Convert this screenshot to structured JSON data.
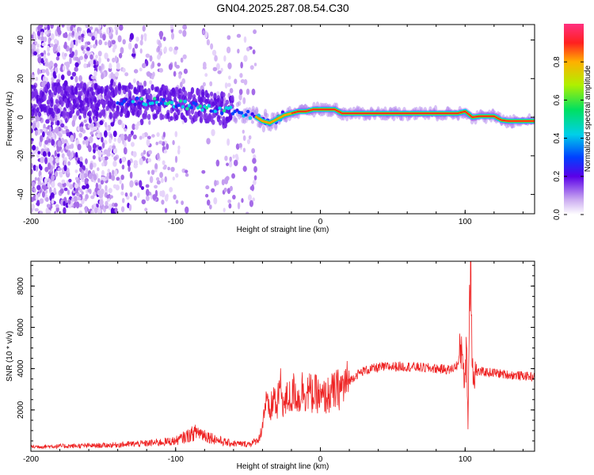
{
  "title": "GN04.2025.287.08.54.C30",
  "chart_data": [
    {
      "type": "heatmap",
      "name": "spectrogram",
      "xlabel": "Height of straight line (km)",
      "ylabel": "Frequency (Hz)",
      "xlim": [
        -200,
        148
      ],
      "ylim": [
        -50,
        48
      ],
      "xticks": [
        "-200",
        "-100",
        "0",
        "100"
      ],
      "yticks": [
        "40",
        "20",
        "0",
        "-20",
        "-40"
      ],
      "colorbar": {
        "label": "Normalized spectral amplitude",
        "range": [
          0,
          1
        ],
        "ticks": [
          "0.0",
          "0.2",
          "0.4",
          "0.6",
          "0.8"
        ]
      },
      "ridge": {
        "x": [
          -200,
          -180,
          -160,
          -140,
          -120,
          -100,
          -90,
          -80,
          -70,
          -60,
          -50,
          -45,
          -40,
          -35,
          -30,
          -25,
          -20,
          -15,
          -10,
          -5,
          0,
          5,
          10,
          15,
          20,
          40,
          60,
          80,
          95,
          100,
          105,
          110,
          120,
          125,
          130,
          140,
          148
        ],
        "frequency_hz": [
          9,
          9,
          9,
          8.5,
          8,
          7,
          6,
          5,
          4,
          3,
          1.5,
          0.5,
          -2,
          -3,
          -1,
          1,
          2,
          3,
          3,
          4,
          4,
          4,
          4,
          2,
          2,
          2,
          2,
          2,
          2,
          3,
          0,
          0.5,
          0.5,
          -1.5,
          -2,
          -2,
          -2
        ]
      }
    },
    {
      "type": "line",
      "name": "snr",
      "xlabel": "Height of straight line (km)",
      "ylabel": "SNR (10 * v/v)",
      "xlim": [
        -200,
        148
      ],
      "ylim": [
        0,
        9200
      ],
      "xticks": [
        "-200",
        "-100",
        "0",
        "100"
      ],
      "yticks": [
        "2000",
        "4000",
        "6000",
        "8000"
      ],
      "color": "#ee2222",
      "envelope": {
        "x": [
          -200,
          -150,
          -120,
          -100,
          -95,
          -90,
          -85,
          -80,
          -75,
          -70,
          -65,
          -60,
          -55,
          -50,
          -45,
          -42,
          -40,
          -38,
          -35,
          -32,
          -30,
          -28,
          -25,
          -22,
          -20,
          -18,
          -15,
          -12,
          -10,
          -8,
          -5,
          -2,
          0,
          5,
          10,
          15,
          20,
          25,
          30,
          40,
          50,
          60,
          70,
          80,
          90,
          95,
          98,
          100,
          101,
          102,
          103,
          104,
          105,
          106,
          110,
          120,
          130,
          140,
          148
        ],
        "snr": [
          220,
          280,
          380,
          500,
          650,
          800,
          950,
          800,
          650,
          520,
          420,
          380,
          350,
          350,
          450,
          650,
          1300,
          2400,
          1800,
          2700,
          2000,
          3200,
          2200,
          2700,
          2500,
          3000,
          2500,
          3100,
          2800,
          2900,
          2700,
          2800,
          2500,
          2700,
          2900,
          3100,
          3400,
          3700,
          3900,
          4050,
          4100,
          4100,
          4050,
          4000,
          3950,
          4200,
          5200,
          3000,
          5800,
          1000,
          7500,
          9000,
          4300,
          3800,
          3850,
          3800,
          3700,
          3650,
          3600
        ]
      }
    }
  ]
}
